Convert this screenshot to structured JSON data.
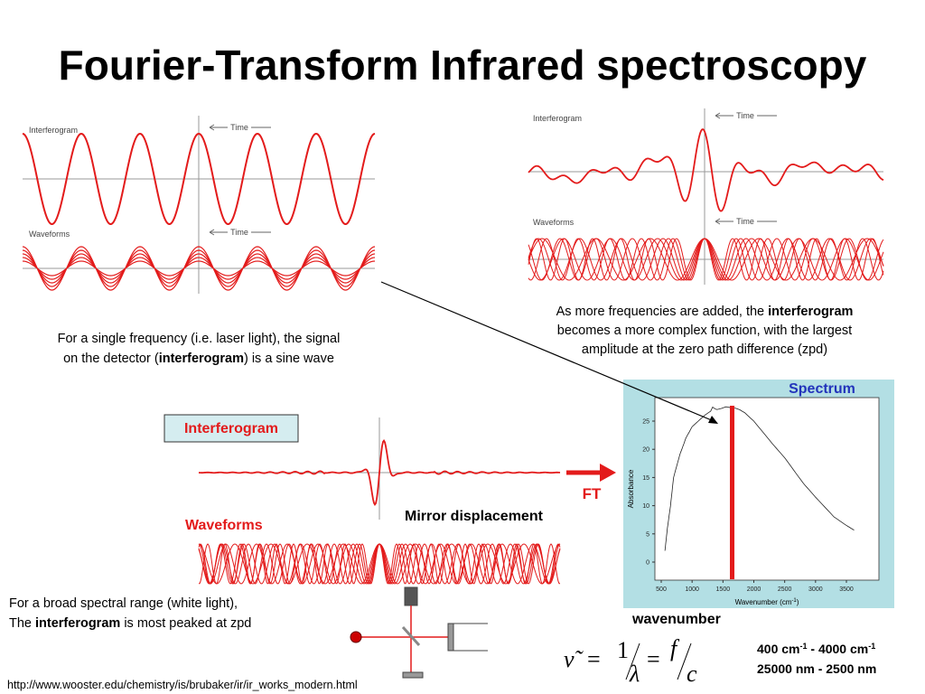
{
  "title": "Fourier-Transform Infrared spectroscopy",
  "panels": {
    "interferogram": "Interferogram",
    "waveforms": "Waveforms",
    "time": "Time"
  },
  "caption_right": [
    "As more frequencies are added, the ",
    "interferogram",
    "becomes a more complex function, with the largest",
    "amplitude at the zero path difference (zpd)"
  ],
  "caption_left": [
    "For a single frequency (i.e. laser light), the signal",
    "on the detector (",
    "interferogram",
    ") is a sine wave"
  ],
  "caption_bottom": [
    "For a broad spectral range (white light),",
    "The ",
    "interferogram",
    " is most peaked at zpd"
  ],
  "labels": {
    "interferogram_box": "Interferogram",
    "waveforms": "Waveforms",
    "mirror": "Mirror displacement",
    "ft": "FT",
    "spectrum": "Spectrum",
    "wavenumber": "wavenumber"
  },
  "spectrum": {
    "y_label": "Absorbance",
    "x_label": [
      "Wavenumber (cm",
      "-1",
      ")"
    ],
    "xticks": [
      500,
      1000,
      1500,
      2000,
      2500,
      3000,
      3500
    ],
    "yticks": [
      0,
      5,
      10,
      15,
      20,
      25
    ]
  },
  "formula": {
    "nu": "ν̃",
    "eq": "=",
    "one": "1",
    "lambda": "λ",
    "f": "f",
    "c": "c"
  },
  "range": {
    "line1": [
      "400 cm",
      "-1",
      " - 4000 cm",
      "-1"
    ],
    "line2": "25000 nm - 2500 nm"
  },
  "footer": "http://www.wooster.edu/chemistry/is/brubaker/ir/ir_works_modern.html"
}
